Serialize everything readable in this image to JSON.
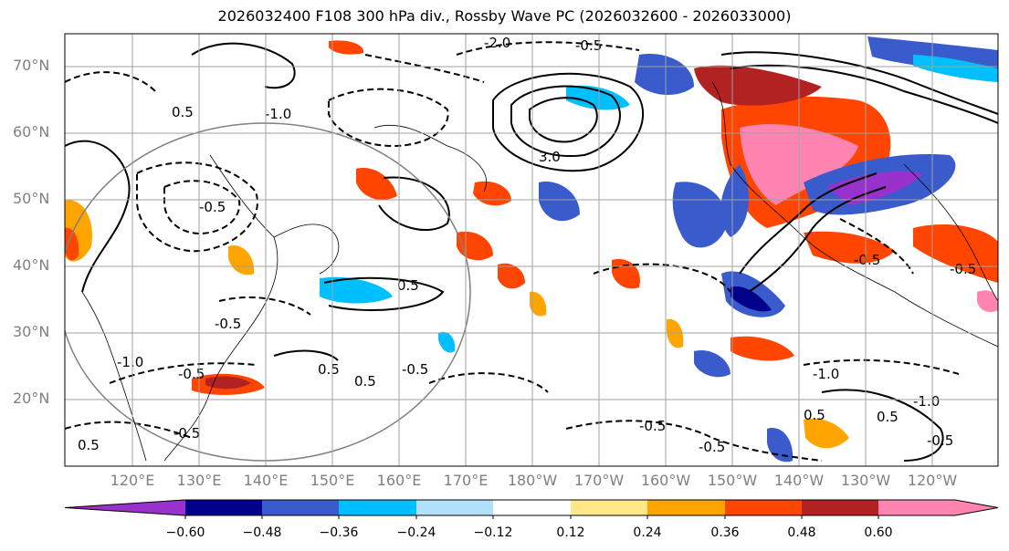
{
  "title": "2026032400 F108 300 hPa div., Rossby Wave PC (2026032600 - 2026033000)",
  "lat_labels": [
    "70°N",
    "60°N",
    "50°N",
    "40°N",
    "30°N",
    "20°N"
  ],
  "lon_labels": [
    "120°E",
    "130°E",
    "140°E",
    "150°E",
    "160°E",
    "170°E",
    "180°W",
    "170°W",
    "160°W",
    "150°W",
    "140°W",
    "130°W",
    "120°W"
  ],
  "colorbar": {
    "ticks": [
      "−0.60",
      "−0.48",
      "−0.36",
      "−0.24",
      "−0.12",
      "0.12",
      "0.24",
      "0.36",
      "0.48",
      "0.60"
    ],
    "colors": [
      "#9932cc",
      "#00008b",
      "#3a5bcc",
      "#00bfff",
      "#b0e0fa",
      "#ffffff",
      "#ffe88a",
      "#ffa500",
      "#ff4500",
      "#b22222",
      "#ff85b0"
    ]
  },
  "contour_labels": [
    "-2.0",
    "-0.5",
    "-1.0",
    "0.5",
    "3.0",
    "-0.5",
    "0.5",
    "-0.5",
    "-1.0",
    "-0.5",
    "0.5",
    "0.5",
    "-0.5",
    "-0.5",
    "0.5",
    "-0.5",
    "-0.5",
    "0.5",
    "-1.0",
    "-0.5",
    "-0.5",
    "0.5",
    "-1.0",
    "-0.5"
  ]
}
